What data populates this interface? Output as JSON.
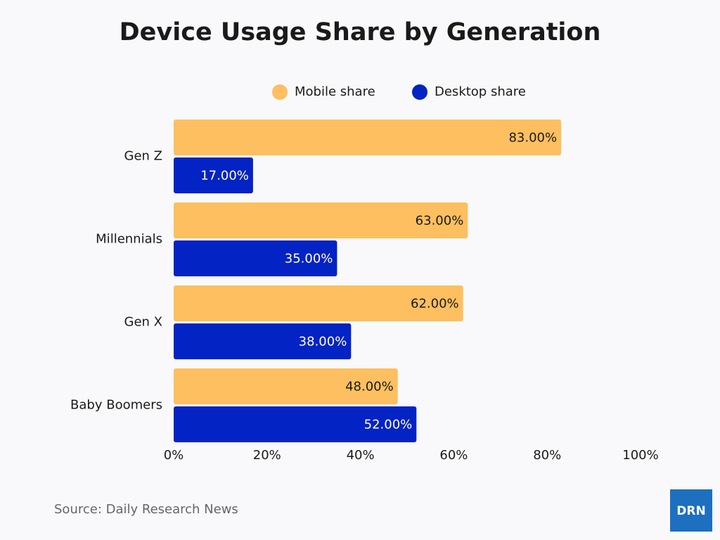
{
  "chart_data": {
    "type": "bar",
    "orientation": "horizontal",
    "title": "Device Usage Share by Generation",
    "categories": [
      "Gen Z",
      "Millennials",
      "Gen X",
      "Baby Boomers"
    ],
    "series": [
      {
        "name": "Mobile share",
        "color": "#fdbf5f",
        "values": [
          83,
          63,
          62,
          48
        ],
        "value_labels": [
          "83.00%",
          "63.00%",
          "62.00%",
          "48.00%"
        ]
      },
      {
        "name": "Desktop share",
        "color": "#0323c4",
        "values": [
          17,
          35,
          38,
          52
        ],
        "value_labels": [
          "17.00%",
          "35.00%",
          "38.00%",
          "52.00%"
        ]
      }
    ],
    "xlim": [
      0,
      100
    ],
    "xticks": [
      {
        "value": 0,
        "label": "0%"
      },
      {
        "value": 20,
        "label": "20%"
      },
      {
        "value": 40,
        "label": "40%"
      },
      {
        "value": 60,
        "label": "60%"
      },
      {
        "value": 80,
        "label": "80%"
      },
      {
        "value": 100,
        "label": "100%"
      }
    ],
    "grid": false,
    "source": "Source: Daily Research News",
    "logo": "DRN"
  }
}
